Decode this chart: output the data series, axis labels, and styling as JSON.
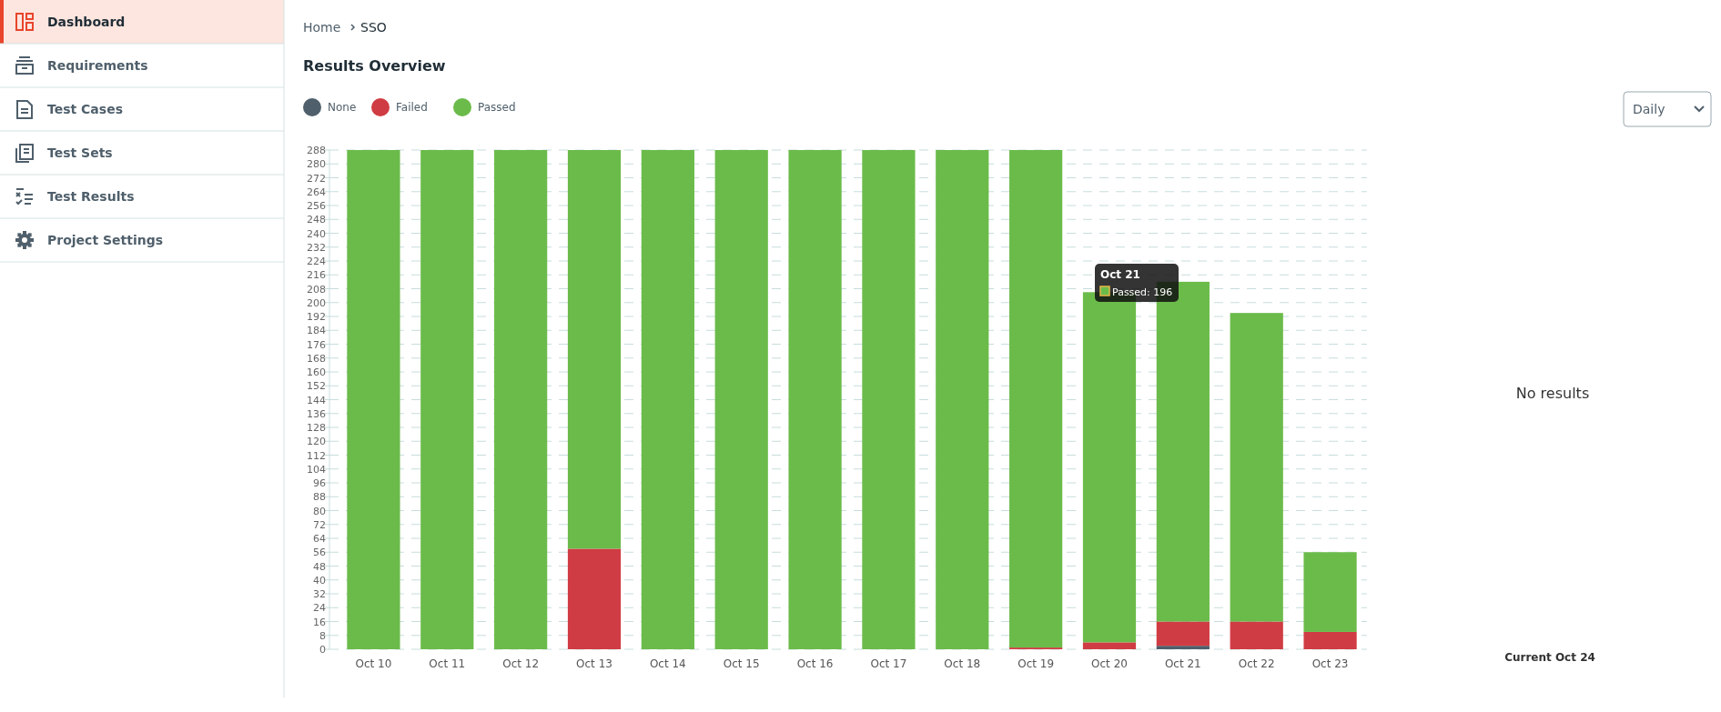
{
  "chart_data": {
    "type": "bar",
    "title": "Results Overview",
    "stacked": true,
    "grid": "y",
    "legend": "top left",
    "categories": [
      "Oct 10",
      "Oct 11",
      "Oct 12",
      "Oct 13",
      "Oct 14",
      "Oct 15",
      "Oct 16",
      "Oct 17",
      "Oct 18",
      "Oct 19",
      "Oct 20",
      "Oct 21",
      "Oct 22",
      "Oct 23"
    ],
    "series": [
      {
        "name": "None",
        "color": "#4f5f6b",
        "values": [
          0,
          0,
          0,
          0,
          0,
          0,
          0,
          0,
          0,
          0,
          0,
          2,
          0,
          0
        ]
      },
      {
        "name": "Failed",
        "color": "#d03c43",
        "values": [
          0,
          0,
          0,
          58,
          0,
          0,
          0,
          0,
          0,
          1,
          4,
          14,
          16,
          10
        ]
      },
      {
        "name": "Passed",
        "color": "#6bbb4a",
        "values": [
          288,
          288,
          288,
          230,
          288,
          288,
          288,
          288,
          288,
          287,
          202,
          196,
          178,
          46
        ]
      }
    ],
    "ylim": [
      0,
      288
    ],
    "yticks": [
      0,
      8,
      16,
      24,
      32,
      40,
      48,
      56,
      64,
      72,
      80,
      88,
      96,
      104,
      112,
      120,
      128,
      136,
      144,
      152,
      160,
      168,
      176,
      184,
      192,
      200,
      208,
      216,
      224,
      232,
      240,
      248,
      256,
      264,
      272,
      280,
      288
    ],
    "annotations": [
      "Dashboard",
      "Requirements",
      "Test Cases",
      "Test Sets",
      "Test Results",
      "Project Settings",
      "Home",
      "SSO",
      "Daily",
      "No results",
      "Current Oct 24",
      "Oct 21",
      "Passed: 196"
    ]
  }
}
